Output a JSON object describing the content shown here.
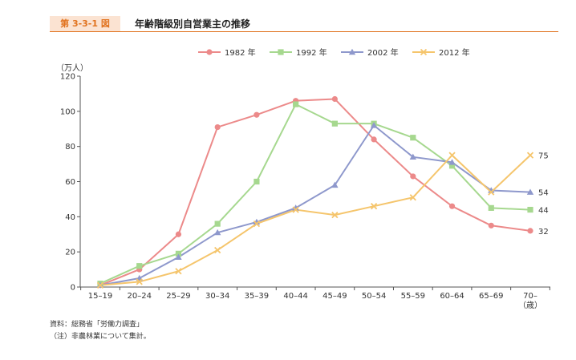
{
  "figure": {
    "number": "第 3-3-1 図",
    "title": "年齢階級別自営業主の推移"
  },
  "notes": {
    "source": "資料：総務省「労働力調査」",
    "note": "（注）非農林業について集計。"
  },
  "chart_data": {
    "type": "line",
    "title": "年齢階級別自営業主の推移",
    "ylabel": "（万人）",
    "xlabel": "",
    "ylim": [
      0,
      120
    ],
    "yticks": [
      0,
      20,
      40,
      60,
      80,
      100,
      120
    ],
    "categories": [
      "15–19",
      "20–24",
      "25–29",
      "30–34",
      "35–39",
      "40–44",
      "45–49",
      "50–54",
      "55–59",
      "60–64",
      "65–69",
      "70–"
    ],
    "x_unit_label": "（歳）",
    "legend_position": "top-center",
    "grid": false,
    "series": [
      {
        "name": "1982 年",
        "color": "#ec8a8a",
        "marker": "circle",
        "values": [
          1,
          10,
          30,
          91,
          98,
          106,
          107,
          84,
          63,
          46,
          35,
          32
        ],
        "end_label": "32"
      },
      {
        "name": "1992 年",
        "color": "#a6d88f",
        "marker": "square",
        "values": [
          2,
          12,
          19,
          36,
          60,
          104,
          93,
          93,
          85,
          69,
          45,
          44
        ],
        "end_label": "44"
      },
      {
        "name": "2002 年",
        "color": "#8e98cc",
        "marker": "triangle",
        "values": [
          1,
          5,
          17,
          31,
          37,
          45,
          58,
          92,
          74,
          71,
          55,
          54
        ],
        "end_label": "54"
      },
      {
        "name": "2012 年",
        "color": "#f5c56c",
        "marker": "cross",
        "values": [
          1,
          3,
          9,
          21,
          36,
          44,
          41,
          46,
          51,
          75,
          54,
          75
        ],
        "end_label": "75"
      }
    ]
  }
}
